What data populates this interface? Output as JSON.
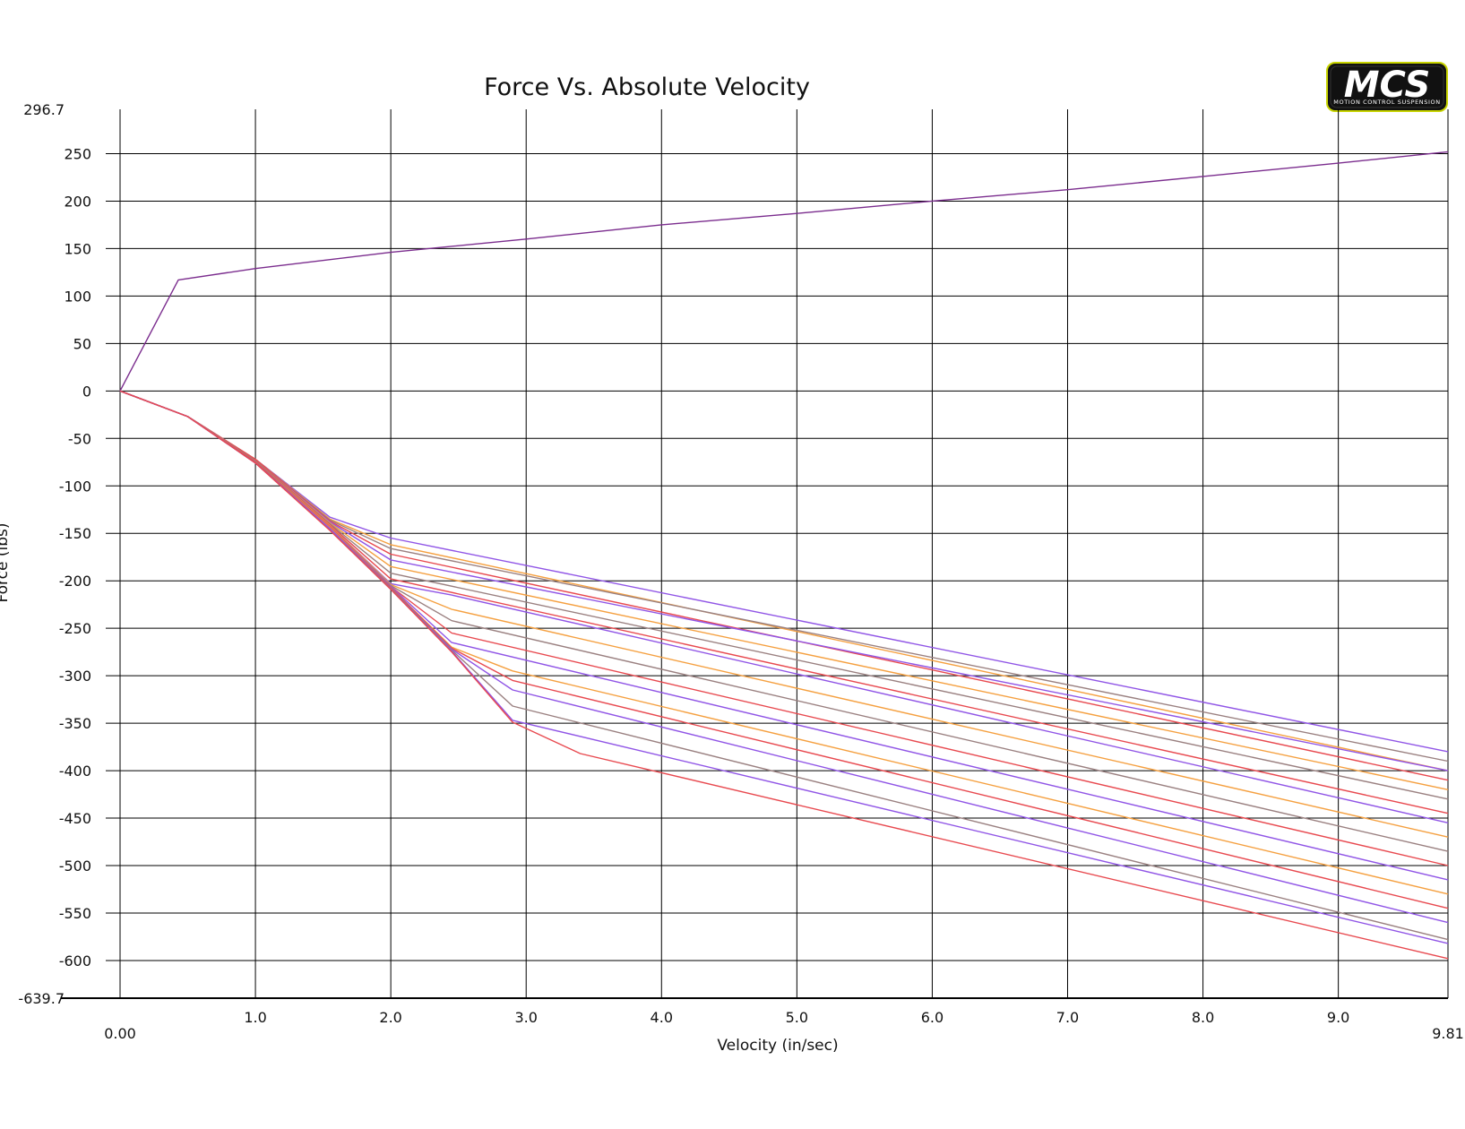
{
  "logo": {
    "text": "MCS",
    "subtext": "MOTION CONTROL SUSPENSION",
    "accent": "#c8d400"
  },
  "chart_data": {
    "type": "line",
    "title": "Force Vs. Absolute Velocity",
    "xlabel": "Velocity (in/sec)",
    "ylabel": "Force (lbs)",
    "xlim": [
      0,
      9.81
    ],
    "ylim": [
      -639.7,
      296.7
    ],
    "x_ticks": [
      0,
      1,
      2,
      3,
      4,
      5,
      6,
      7,
      8,
      9,
      9.81
    ],
    "x_tick_labels": [
      "0.00",
      "1.0",
      "2.0",
      "3.0",
      "4.0",
      "5.0",
      "6.0",
      "7.0",
      "8.0",
      "9.0",
      "9.81"
    ],
    "y_ticks": [
      296.7,
      250,
      200,
      150,
      100,
      50,
      0,
      -50,
      -100,
      -150,
      -200,
      -250,
      -300,
      -350,
      -400,
      -450,
      -500,
      -550,
      -600,
      -639.7
    ],
    "y_tick_labels": [
      "296.7",
      "250",
      "200",
      "150",
      "100",
      "50",
      "0",
      "-50",
      "-100",
      "-150",
      "-200",
      "-250",
      "-300",
      "-350",
      "-400",
      "-450",
      "-500",
      "-550",
      "-600",
      "-639.7"
    ],
    "grid": true,
    "legend": "none",
    "series": [
      {
        "color": "#7b2d8e",
        "x": [
          0,
          0.43,
          1.0,
          2.0,
          3.0,
          4.0,
          5.0,
          6.0,
          7.0,
          8.0,
          9.0,
          9.81
        ],
        "y": [
          0,
          117,
          129,
          146,
          160,
          175,
          187,
          200,
          212,
          226,
          240,
          252
        ]
      },
      {
        "color": "#9055e6",
        "x": [
          0,
          0.5,
          1.0,
          1.55,
          2.0,
          9.81
        ],
        "y": [
          0,
          -27,
          -72,
          -133,
          -155,
          -380
        ]
      },
      {
        "color": "#f5a040",
        "x": [
          0,
          0.5,
          1.0,
          1.55,
          2.0,
          9.81
        ],
        "y": [
          0,
          -27,
          -72,
          -135,
          -162,
          -400
        ]
      },
      {
        "color": "#9a8080",
        "x": [
          0,
          0.5,
          1.0,
          1.55,
          2.0,
          9.81
        ],
        "y": [
          0,
          -27,
          -72,
          -136,
          -166,
          -390
        ]
      },
      {
        "color": "#e8494f",
        "x": [
          0,
          0.5,
          1.0,
          1.55,
          2.0,
          9.81
        ],
        "y": [
          0,
          -27,
          -72,
          -137,
          -172,
          -410
        ]
      },
      {
        "color": "#9055e6",
        "x": [
          0,
          0.5,
          1.0,
          1.55,
          2.0,
          9.81
        ],
        "y": [
          0,
          -27,
          -73,
          -138,
          -178,
          -400
        ]
      },
      {
        "color": "#f5a040",
        "x": [
          0,
          0.5,
          1.0,
          1.55,
          2.0,
          9.81
        ],
        "y": [
          0,
          -27,
          -73,
          -139,
          -185,
          -420
        ]
      },
      {
        "color": "#9a8080",
        "x": [
          0,
          0.5,
          1.0,
          1.55,
          2.0,
          9.81
        ],
        "y": [
          0,
          -27,
          -73,
          -140,
          -192,
          -430
        ]
      },
      {
        "color": "#e8494f",
        "x": [
          0,
          0.5,
          1.0,
          1.55,
          2.0,
          9.81
        ],
        "y": [
          0,
          -27,
          -73,
          -141,
          -198,
          -445
        ]
      },
      {
        "color": "#9055e6",
        "x": [
          0,
          0.5,
          1.0,
          1.55,
          2.0,
          2.45,
          9.81
        ],
        "y": [
          0,
          -27,
          -74,
          -142,
          -203,
          -215,
          -455
        ]
      },
      {
        "color": "#f5a040",
        "x": [
          0,
          0.5,
          1.0,
          1.55,
          2.0,
          2.45,
          9.81
        ],
        "y": [
          0,
          -27,
          -74,
          -142,
          -204,
          -230,
          -470
        ]
      },
      {
        "color": "#9a8080",
        "x": [
          0,
          0.5,
          1.0,
          1.55,
          2.0,
          2.45,
          9.81
        ],
        "y": [
          0,
          -27,
          -74,
          -143,
          -205,
          -242,
          -485
        ]
      },
      {
        "color": "#e8494f",
        "x": [
          0,
          0.5,
          1.0,
          1.55,
          2.0,
          2.45,
          9.81
        ],
        "y": [
          0,
          -27,
          -75,
          -143,
          -206,
          -255,
          -500
        ]
      },
      {
        "color": "#9055e6",
        "x": [
          0,
          0.5,
          1.0,
          1.55,
          2.0,
          2.45,
          9.81
        ],
        "y": [
          0,
          -27,
          -75,
          -144,
          -206,
          -265,
          -515
        ]
      },
      {
        "color": "#f5a040",
        "x": [
          0,
          0.5,
          1.0,
          1.55,
          2.0,
          2.45,
          2.9,
          9.81
        ],
        "y": [
          0,
          -27,
          -75,
          -144,
          -207,
          -270,
          -295,
          -530
        ]
      },
      {
        "color": "#e8494f",
        "x": [
          0,
          0.5,
          1.0,
          1.55,
          2.0,
          2.45,
          2.9,
          9.81
        ],
        "y": [
          0,
          -27,
          -75,
          -145,
          -207,
          -271,
          -305,
          -545
        ]
      },
      {
        "color": "#9055e6",
        "x": [
          0,
          0.5,
          1.0,
          1.55,
          2.0,
          2.45,
          2.9,
          9.81
        ],
        "y": [
          0,
          -27,
          -76,
          -145,
          -208,
          -272,
          -315,
          -560
        ]
      },
      {
        "color": "#9a8080",
        "x": [
          0,
          0.5,
          1.0,
          1.55,
          2.0,
          2.45,
          2.9,
          9.81
        ],
        "y": [
          0,
          -27,
          -76,
          -146,
          -208,
          -273,
          -332,
          -578
        ]
      },
      {
        "color": "#9055e6",
        "x": [
          0,
          0.5,
          1.0,
          1.55,
          2.0,
          2.45,
          2.9,
          9.81
        ],
        "y": [
          0,
          -27,
          -76,
          -146,
          -209,
          -274,
          -347,
          -582
        ]
      },
      {
        "color": "#e8494f",
        "x": [
          0,
          0.5,
          1.0,
          1.55,
          2.0,
          2.45,
          2.9,
          3.4,
          9.81
        ],
        "y": [
          0,
          -27,
          -76,
          -147,
          -209,
          -275,
          -349,
          -382,
          -598
        ]
      }
    ]
  }
}
